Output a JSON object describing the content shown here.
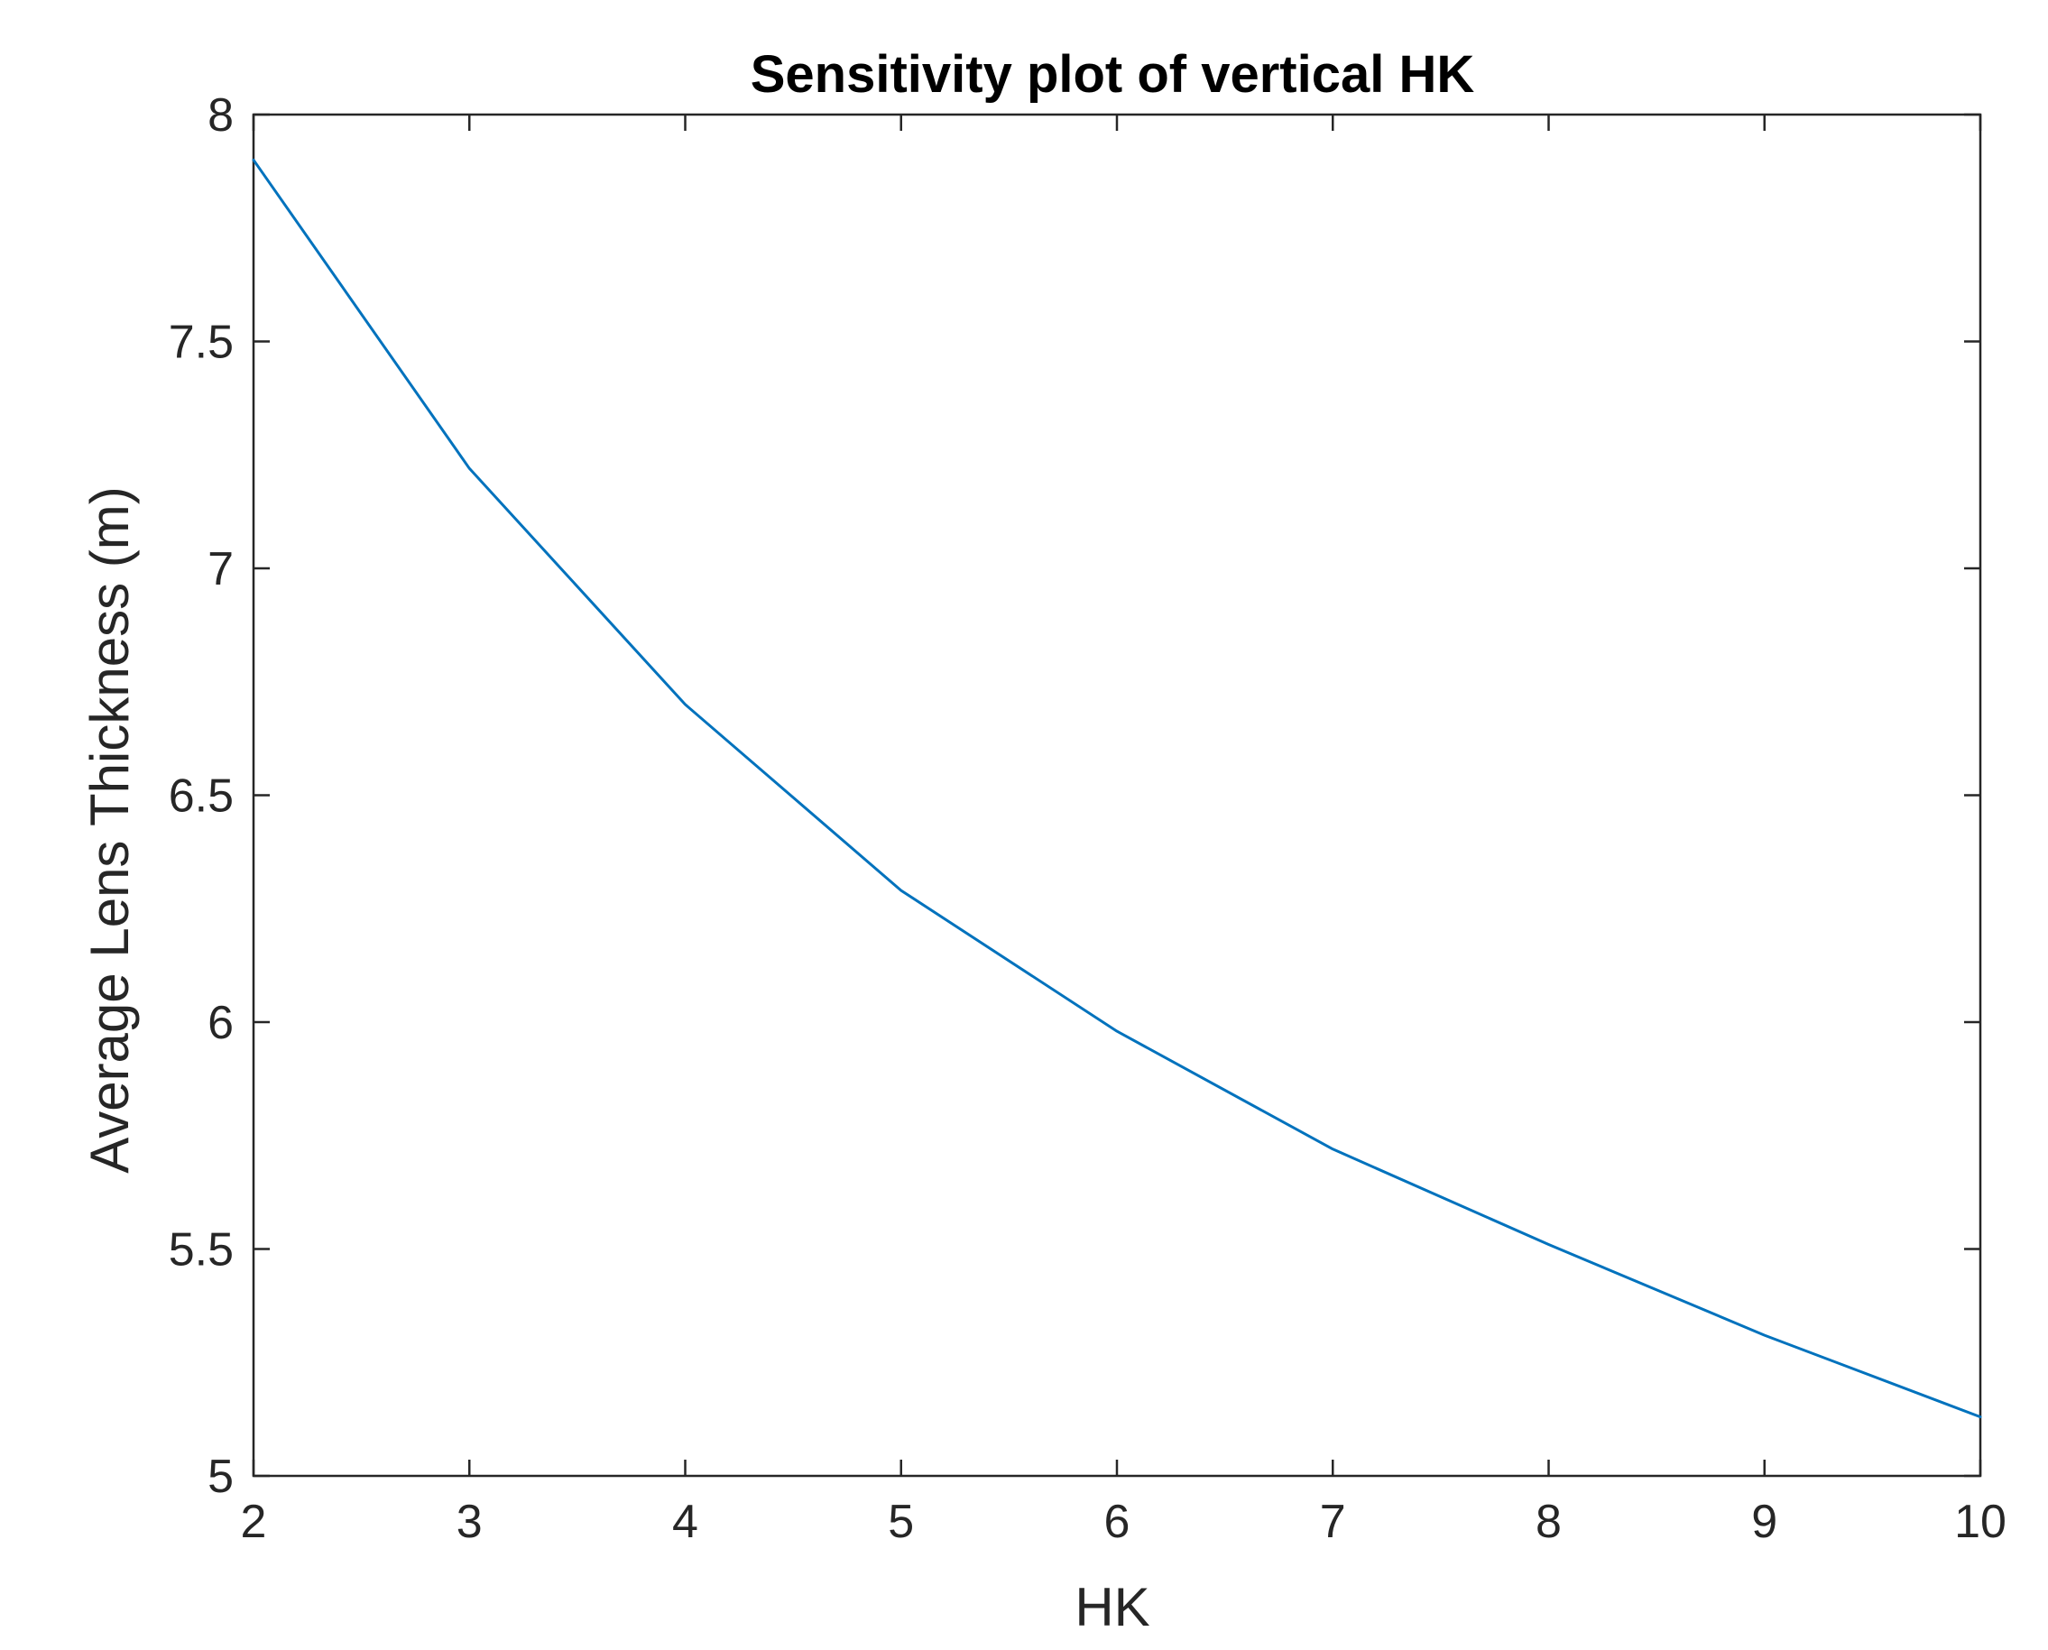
{
  "chart_data": {
    "type": "line",
    "title": "Sensitivity plot of vertical HK",
    "xlabel": "HK",
    "ylabel": "Average Lens Thickness (m)",
    "xlim": [
      2,
      10
    ],
    "ylim": [
      5,
      8
    ],
    "xticks": [
      2,
      3,
      4,
      5,
      6,
      7,
      8,
      9,
      10
    ],
    "yticks": [
      5,
      5.5,
      6,
      6.5,
      7,
      7.5,
      8
    ],
    "xtick_labels": [
      "2",
      "3",
      "4",
      "5",
      "6",
      "7",
      "8",
      "9",
      "10"
    ],
    "ytick_labels": [
      "5",
      "5.5",
      "6",
      "6.5",
      "7",
      "7.5",
      "8"
    ],
    "grid": false,
    "series": [
      {
        "color": "#0072BD",
        "x": [
          2,
          3,
          4,
          5,
          6,
          7,
          8,
          9,
          10
        ],
        "y": [
          7.9,
          7.22,
          6.7,
          6.29,
          5.98,
          5.72,
          5.51,
          5.31,
          5.13
        ]
      }
    ]
  }
}
